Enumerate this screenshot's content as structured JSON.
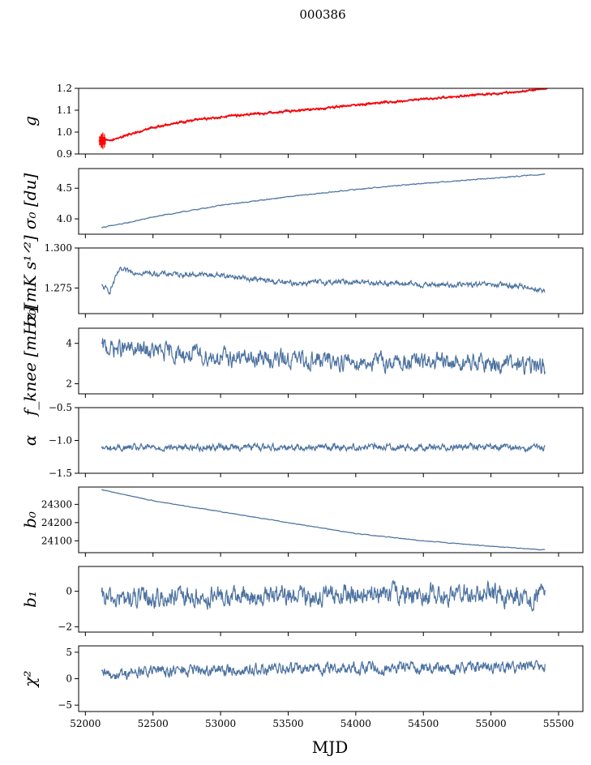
{
  "figure": {
    "title": "000386",
    "xlabel": "MJD"
  },
  "chart_data": [
    {
      "type": "line",
      "name": "g",
      "ylabel": "g",
      "xlim": [
        51950,
        55680
      ],
      "ylim": [
        0.9,
        1.2
      ],
      "yticks": [
        0.9,
        1.0,
        1.1,
        1.2
      ],
      "ytick_labels": [
        "0.9",
        "1.0",
        "1.1",
        "1.2"
      ],
      "series": [
        {
          "name": "g-smooth",
          "color": "#4c72a0",
          "x": [
            52120,
            52200,
            52300,
            52500,
            52800,
            53100,
            53400,
            53700,
            54000,
            54300,
            54600,
            54900,
            55200,
            55400
          ],
          "values": [
            0.96,
            0.965,
            0.985,
            1.02,
            1.055,
            1.075,
            1.09,
            1.105,
            1.125,
            1.14,
            1.155,
            1.17,
            1.185,
            1.2
          ]
        },
        {
          "name": "g-measured",
          "color": "#ff0000",
          "x": [
            52100,
            52120,
            52200,
            52300,
            52500,
            52800,
            53100,
            53400,
            53700,
            54000,
            54300,
            54600,
            54900,
            55200,
            55420
          ],
          "values": [
            0.96,
            0.96,
            0.965,
            0.985,
            1.02,
            1.055,
            1.075,
            1.09,
            1.105,
            1.125,
            1.14,
            1.155,
            1.17,
            1.185,
            1.2
          ],
          "noise": 0.004
        }
      ]
    },
    {
      "type": "line",
      "name": "sigma0-du",
      "ylabel": "σ₀ [du]",
      "xlim": [
        51950,
        55680
      ],
      "ylim": [
        3.75,
        4.82
      ],
      "yticks": [
        4.0,
        4.5
      ],
      "ytick_labels": [
        "4.0",
        "4.5"
      ],
      "series": [
        {
          "name": "sigma0",
          "color": "#4c72a0",
          "x": [
            52120,
            52300,
            52500,
            53000,
            53500,
            54000,
            54500,
            55000,
            55400
          ],
          "values": [
            3.86,
            3.93,
            4.03,
            4.22,
            4.36,
            4.48,
            4.58,
            4.66,
            4.73
          ],
          "noise": 0.006
        }
      ]
    },
    {
      "type": "line",
      "name": "sigma0-mk",
      "ylabel": "σ₀[mK s¹ᐟ²]",
      "xlim": [
        51950,
        55680
      ],
      "ylim": [
        1.259,
        1.3
      ],
      "yticks": [
        1.275,
        1.3
      ],
      "ytick_labels": [
        "1.275",
        "1.300"
      ],
      "series": [
        {
          "name": "sigma0-mk",
          "color": "#4c72a0",
          "x": [
            52120,
            52180,
            52250,
            52500,
            53000,
            53500,
            54000,
            54500,
            55000,
            55250,
            55400
          ],
          "values": [
            1.276,
            1.273,
            1.286,
            1.284,
            1.283,
            1.278,
            1.279,
            1.277,
            1.277,
            1.276,
            1.273
          ],
          "noise": 0.0013
        }
      ]
    },
    {
      "type": "line",
      "name": "fknee",
      "ylabel": "f_knee [mHz]",
      "xlim": [
        51950,
        55680
      ],
      "ylim": [
        1.5,
        4.75
      ],
      "yticks": [
        2,
        4
      ],
      "ytick_labels": [
        "2",
        "4"
      ],
      "series": [
        {
          "name": "fknee",
          "color": "#4c72a0",
          "x": [
            52120,
            52500,
            53000,
            53500,
            54000,
            54500,
            55000,
            55400
          ],
          "values": [
            3.8,
            3.6,
            3.3,
            3.2,
            3.1,
            3.05,
            3.0,
            2.85
          ],
          "noise": 0.35
        }
      ]
    },
    {
      "type": "line",
      "name": "alpha",
      "ylabel": "α",
      "xlim": [
        51950,
        55680
      ],
      "ylim": [
        -1.5,
        -0.5
      ],
      "yticks": [
        -1.5,
        -1.0,
        -0.5
      ],
      "ytick_labels": [
        "−1.5",
        "−1.0",
        "−0.5"
      ],
      "series": [
        {
          "name": "alpha",
          "color": "#4c72a0",
          "x": [
            52120,
            52500,
            53000,
            53500,
            54000,
            54500,
            55000,
            55400
          ],
          "values": [
            -1.12,
            -1.11,
            -1.1,
            -1.1,
            -1.1,
            -1.1,
            -1.1,
            -1.12
          ],
          "noise": 0.04
        }
      ]
    },
    {
      "type": "line",
      "name": "b0",
      "ylabel": "b₀",
      "xlim": [
        51950,
        55680
      ],
      "ylim": [
        24035,
        24395
      ],
      "yticks": [
        24100,
        24200,
        24300
      ],
      "ytick_labels": [
        "24100",
        "24200",
        "24300"
      ],
      "series": [
        {
          "name": "b0",
          "color": "#4c72a0",
          "x": [
            52120,
            52250,
            52500,
            53000,
            53500,
            54000,
            54500,
            55000,
            55400
          ],
          "values": [
            24380,
            24360,
            24320,
            24260,
            24200,
            24140,
            24100,
            24070,
            24050
          ],
          "noise": 1.5
        }
      ]
    },
    {
      "type": "line",
      "name": "b1",
      "ylabel": "b₁",
      "xlim": [
        51950,
        55680
      ],
      "ylim": [
        -2.3,
        1.4
      ],
      "yticks": [
        -2,
        0
      ],
      "ytick_labels": [
        "−2",
        "0"
      ],
      "series": [
        {
          "name": "b1",
          "color": "#4c72a0",
          "x": [
            52120,
            52500,
            53000,
            53500,
            54000,
            54500,
            55000,
            55400
          ],
          "values": [
            -0.45,
            -0.4,
            -0.35,
            -0.3,
            -0.2,
            -0.15,
            -0.2,
            -0.3
          ],
          "noise": 0.45
        }
      ]
    },
    {
      "type": "line",
      "name": "chi2",
      "ylabel": "χ²",
      "xlim": [
        51950,
        55680
      ],
      "ylim": [
        -6.2,
        6.2
      ],
      "yticks": [
        -5,
        0,
        5
      ],
      "ytick_labels": [
        "−5",
        "0",
        "5"
      ],
      "series": [
        {
          "name": "chi2",
          "color": "#4c72a0",
          "x": [
            52120,
            52500,
            53000,
            53500,
            54000,
            54500,
            55000,
            55400
          ],
          "values": [
            0.6,
            1.4,
            1.6,
            1.8,
            2.0,
            2.1,
            2.1,
            2.3
          ],
          "noise": 0.9
        }
      ]
    }
  ],
  "x_axis": {
    "ticks": [
      52000,
      52500,
      53000,
      53500,
      54000,
      54500,
      55000,
      55500
    ],
    "tick_labels": [
      "52000",
      "52500",
      "53000",
      "53500",
      "54000",
      "54500",
      "55000",
      "55500"
    ]
  }
}
